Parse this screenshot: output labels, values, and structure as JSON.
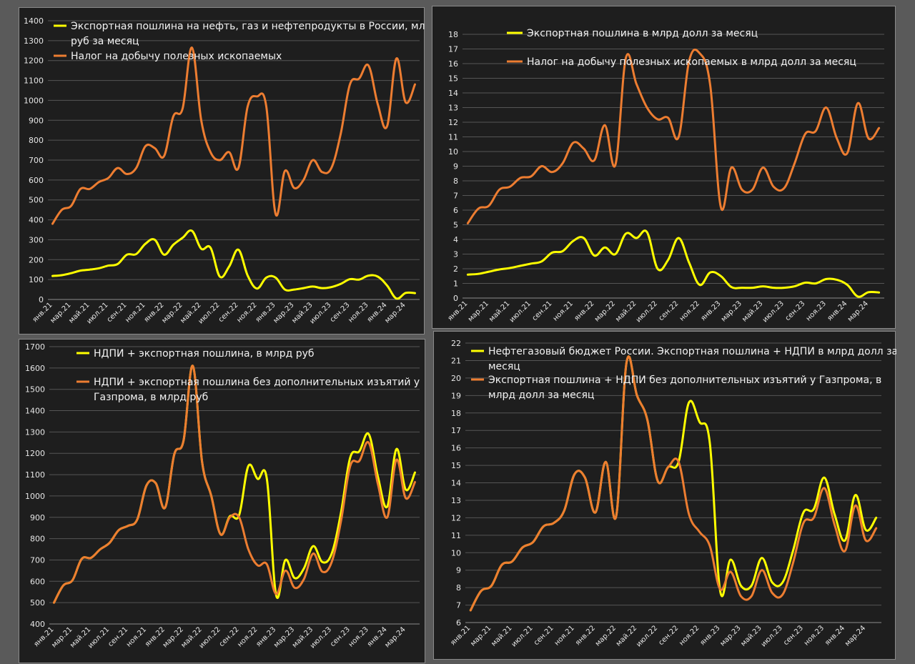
{
  "colors": {
    "yellow": "#ffff00",
    "orange": "#ed7d31",
    "background": "#1e1e1e",
    "page": "#5a5a5a"
  },
  "x_labels": [
    "янв.21",
    "мар.21",
    "май.21",
    "июл.21",
    "сен.21",
    "ноя.21",
    "янв.22",
    "мар.22",
    "май.22",
    "июл.22",
    "сен.22",
    "ноя.22",
    "янв.23",
    "мар.23",
    "май.23",
    "июл.23",
    "сен.23",
    "ноя.23",
    "янв.24",
    "мар.24"
  ],
  "chart_data": [
    {
      "type": "line",
      "ylim": [
        0,
        1400
      ],
      "yticks": [
        "0",
        "100",
        "200",
        "300",
        "400",
        "500",
        "600",
        "700",
        "800",
        "900",
        "1000",
        "1100",
        "1200",
        "1300",
        "1400"
      ],
      "legend": [
        [
          "Экспортная пошлина на нефть, газ и нефтепродукты в России, млрд",
          "руб за месяц"
        ],
        [
          "Налог на добычу полезных ископаемых"
        ]
      ],
      "legend_position": "top",
      "series": [
        {
          "name": "Экспортная пошлина на нефть, газ и нефтепродукты в России, млрд руб за месяц",
          "color": "#ffff00",
          "values": [
            118,
            122,
            132,
            145,
            150,
            157,
            170,
            178,
            225,
            228,
            280,
            300,
            225,
            275,
            310,
            345,
            255,
            260,
            115,
            165,
            250,
            120,
            55,
            110,
            110,
            50,
            50,
            57,
            65,
            57,
            62,
            78,
            102,
            100,
            120,
            115,
            70,
            5,
            33,
            32
          ]
        },
        {
          "name": "Налог на добычу полезных ископаемых",
          "color": "#ed7d31",
          "values": [
            380,
            450,
            470,
            555,
            555,
            590,
            610,
            660,
            630,
            660,
            770,
            760,
            720,
            920,
            960,
            1265,
            900,
            740,
            700,
            740,
            660,
            970,
            1020,
            970,
            430,
            645,
            560,
            600,
            700,
            640,
            660,
            830,
            1080,
            1110,
            1175,
            980,
            870,
            1210,
            990,
            1080
          ]
        }
      ]
    },
    {
      "type": "line",
      "ylim": [
        0,
        18
      ],
      "yticks": [
        "0",
        "1",
        "2",
        "3",
        "4",
        "5",
        "6",
        "7",
        "8",
        "9",
        "10",
        "11",
        "12",
        "13",
        "14",
        "15",
        "16",
        "17",
        "18"
      ],
      "legend": [
        [
          "Экспортная пошлина в млрд долл за месяц"
        ],
        [
          "Налог на добычу полезных ископаемых в млрд долл за месяц"
        ]
      ],
      "legend_position": "top",
      "series": [
        {
          "name": "Экспортная пошлина в млрд долл за месяц",
          "color": "#ffff00",
          "values": [
            1.6,
            1.65,
            1.8,
            1.95,
            2.05,
            2.2,
            2.35,
            2.5,
            3.1,
            3.2,
            3.9,
            4.1,
            2.9,
            3.45,
            3.0,
            4.4,
            4.1,
            4.5,
            2.0,
            2.6,
            4.1,
            2.4,
            0.9,
            1.75,
            1.5,
            0.75,
            0.7,
            0.7,
            0.8,
            0.7,
            0.7,
            0.8,
            1.05,
            1.0,
            1.3,
            1.25,
            0.9,
            0.1,
            0.4,
            0.38
          ]
        },
        {
          "name": "Налог на добычу полезных ископаемых в млрд долл за месяц",
          "color": "#ed7d31",
          "values": [
            5.1,
            6.1,
            6.3,
            7.4,
            7.6,
            8.2,
            8.3,
            9.0,
            8.6,
            9.2,
            10.6,
            10.2,
            9.4,
            11.8,
            9.1,
            16.4,
            14.6,
            13.0,
            12.2,
            12.3,
            11.0,
            16.2,
            16.7,
            14.5,
            6.2,
            8.9,
            7.4,
            7.4,
            8.9,
            7.6,
            7.5,
            9.2,
            11.2,
            11.4,
            13.0,
            10.9,
            9.9,
            13.3,
            10.9,
            11.6
          ]
        }
      ]
    },
    {
      "type": "line",
      "ylim": [
        400,
        1700
      ],
      "yticks": [
        "400",
        "500",
        "600",
        "700",
        "800",
        "900",
        "1000",
        "1100",
        "1200",
        "1300",
        "1400",
        "1500",
        "1600",
        "1700"
      ],
      "legend": [
        [
          "НДПИ + экспортная пошлина, в млрд руб"
        ],
        [
          "НДПИ + экспортная пошлина без дополнительных изъятий у",
          "Газпрома, в млрд руб"
        ]
      ],
      "legend_position": "top",
      "series": [
        {
          "name": "НДПИ + экспортная пошлина, в млрд руб",
          "color": "#ffff00",
          "values": [
            500,
            580,
            605,
            705,
            710,
            750,
            780,
            840,
            860,
            890,
            1050,
            1060,
            945,
            1195,
            1260,
            1610,
            1160,
            1000,
            820,
            905,
            910,
            1140,
            1080,
            1080,
            535,
            700,
            615,
            660,
            765,
            690,
            730,
            920,
            1180,
            1210,
            1290,
            1090,
            950,
            1220,
            1030,
            1110
          ]
        },
        {
          "name": "НДПИ + экспортная пошлина без дополнительных изъятий у Газпрома, в млрд руб",
          "color": "#ed7d31",
          "values": [
            500,
            580,
            605,
            705,
            710,
            750,
            780,
            840,
            860,
            890,
            1050,
            1060,
            945,
            1195,
            1260,
            1610,
            1160,
            1000,
            820,
            900,
            900,
            750,
            675,
            680,
            540,
            650,
            570,
            610,
            730,
            645,
            690,
            880,
            1140,
            1165,
            1250,
            1055,
            900,
            1170,
            990,
            1065
          ]
        }
      ]
    },
    {
      "type": "line",
      "ylim": [
        6,
        22
      ],
      "yticks": [
        "6",
        "7",
        "8",
        "9",
        "10",
        "11",
        "12",
        "13",
        "14",
        "15",
        "16",
        "17",
        "18",
        "19",
        "20",
        "21",
        "22"
      ],
      "legend": [
        [
          "Нефтегазовый бюджет России. Экспортная пошлина + НДПИ в млрд долл за",
          "месяц"
        ],
        [
          "Экспортная пошлина + НДПИ без дополнительных изъятий у Газпрома, в",
          "млрд долл за месяц"
        ]
      ],
      "legend_position": "top",
      "series": [
        {
          "name": "Нефтегазовый бюджет России. Экспортная пошлина + НДПИ в млрд долл за месяц",
          "color": "#ffff00",
          "values": [
            6.7,
            7.8,
            8.1,
            9.3,
            9.5,
            10.3,
            10.6,
            11.5,
            11.7,
            12.4,
            14.5,
            14.3,
            12.3,
            15.2,
            12.1,
            20.9,
            19.0,
            17.6,
            14.1,
            14.9,
            15.2,
            18.6,
            17.5,
            16.3,
            7.8,
            9.6,
            8.1,
            8.1,
            9.7,
            8.3,
            8.3,
            10.1,
            12.3,
            12.5,
            14.3,
            12.2,
            10.7,
            13.3,
            11.3,
            12.0
          ]
        },
        {
          "name": "Экспортная пошлина + НДПИ без дополнительных изъятий у Газпрома, в млрд долл за месяц",
          "color": "#ed7d31",
          "values": [
            6.7,
            7.8,
            8.1,
            9.3,
            9.5,
            10.3,
            10.6,
            11.5,
            11.7,
            12.4,
            14.5,
            14.3,
            12.3,
            15.2,
            12.1,
            20.9,
            19.0,
            17.6,
            14.1,
            14.9,
            15.2,
            12.2,
            11.2,
            10.4,
            7.9,
            8.9,
            7.5,
            7.5,
            9.0,
            7.7,
            7.6,
            9.4,
            11.7,
            12.0,
            13.7,
            11.6,
            10.1,
            12.7,
            10.7,
            11.4
          ]
        }
      ]
    }
  ]
}
